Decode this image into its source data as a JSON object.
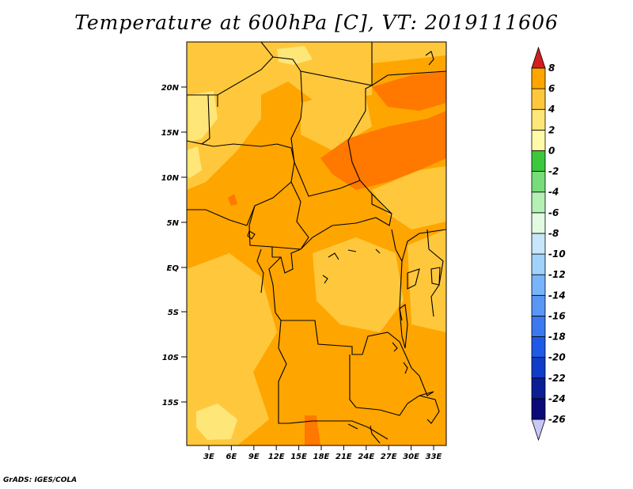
{
  "title": "Temperature at 600hPa [C], VT: 2019111606",
  "credit": "GrADS: IGES/COLA",
  "map": {
    "lat_labels": [
      "20N",
      "15N",
      "10N",
      "5N",
      "EQ",
      "5S",
      "10S",
      "15S"
    ],
    "lon_labels": [
      "3E",
      "6E",
      "9E",
      "12E",
      "15E",
      "18E",
      "21E",
      "24E",
      "27E",
      "30E",
      "33E"
    ]
  },
  "colorbar": {
    "labels": [
      "8",
      "6",
      "4",
      "2",
      "0",
      "-2",
      "-4",
      "-6",
      "-8",
      "-10",
      "-12",
      "-14",
      "-16",
      "-18",
      "-20",
      "-22",
      "-24",
      "-26"
    ],
    "colors": [
      "#c8c8f8",
      "#0a0a78",
      "#0a1e96",
      "#0f3cc8",
      "#1e5ae6",
      "#3c78f0",
      "#5a96f5",
      "#78b4fa",
      "#a0d2fa",
      "#c8e6fa",
      "#e1fae1",
      "#b4f0b4",
      "#78dc78",
      "#3cc83c",
      "#fffaaa",
      "#ffe678",
      "#ffc83c",
      "#ffa500",
      "#ff7800",
      "#f04b0a",
      "#d21e1e"
    ]
  },
  "field_colors": {
    "base": "#ffc83c",
    "warm": "#ffa500",
    "warmer": "#ff7800",
    "cool": "#ffe678",
    "border": "#000000"
  }
}
